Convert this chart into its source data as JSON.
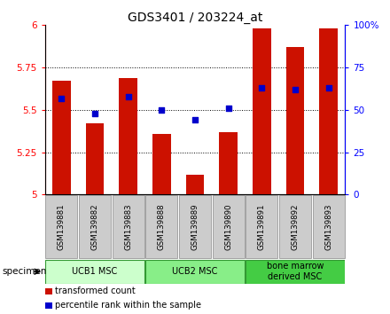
{
  "title": "GDS3401 / 203224_at",
  "categories": [
    "GSM139881",
    "GSM139882",
    "GSM139883",
    "GSM139888",
    "GSM139889",
    "GSM139890",
    "GSM139891",
    "GSM139892",
    "GSM139893"
  ],
  "bar_values": [
    5.67,
    5.42,
    5.69,
    5.36,
    5.12,
    5.37,
    5.98,
    5.87,
    5.98
  ],
  "percentile_values": [
    57,
    48,
    58,
    50,
    44,
    51,
    63,
    62,
    63
  ],
  "ylim_left": [
    5.0,
    6.0
  ],
  "ylim_right": [
    0,
    100
  ],
  "yticks_left": [
    5.0,
    5.25,
    5.5,
    5.75,
    6.0
  ],
  "yticks_right": [
    0,
    25,
    50,
    75,
    100
  ],
  "bar_color": "#cc1100",
  "dot_color": "#0000cc",
  "groups": [
    {
      "label": "UCB1 MSC",
      "indices": [
        0,
        1,
        2
      ],
      "color": "#ccffcc"
    },
    {
      "label": "UCB2 MSC",
      "indices": [
        3,
        4,
        5
      ],
      "color": "#88ee88"
    },
    {
      "label": "bone marrow\nderived MSC",
      "indices": [
        6,
        7,
        8
      ],
      "color": "#44cc44"
    }
  ],
  "specimen_label": "specimen",
  "legend_items": [
    {
      "label": "transformed count",
      "color": "#cc1100"
    },
    {
      "label": "percentile rank within the sample",
      "color": "#0000cc"
    }
  ],
  "background_color": "#ffffff",
  "tick_label_bg": "#cccccc"
}
